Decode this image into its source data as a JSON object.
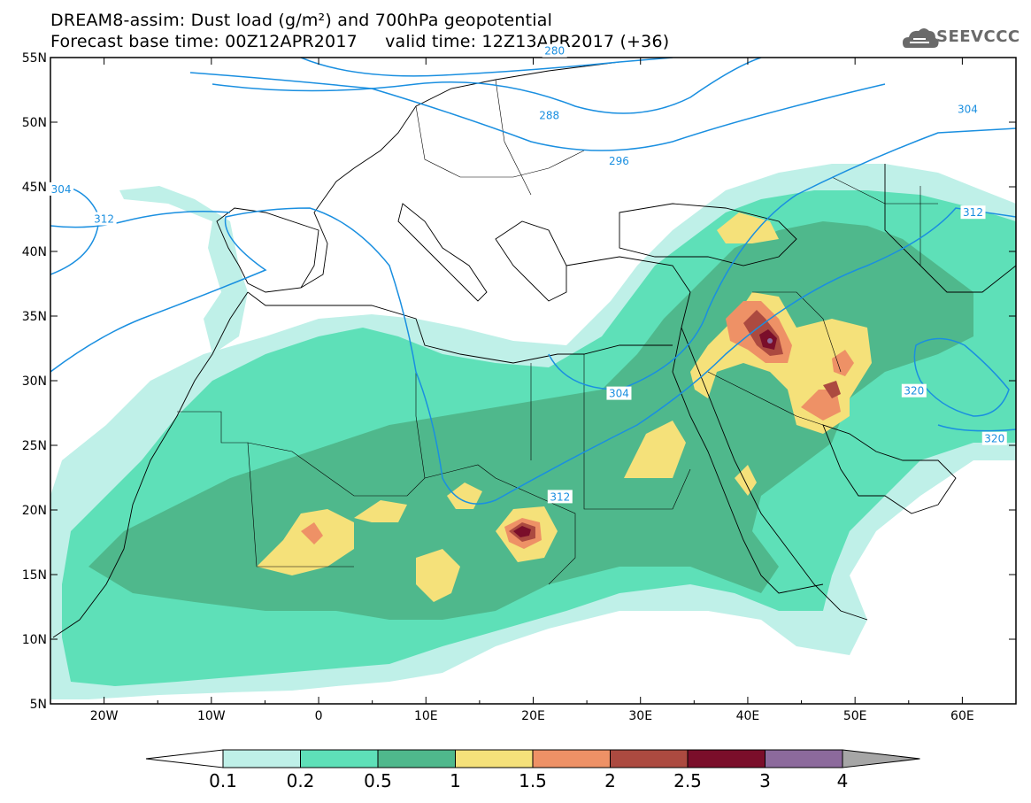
{
  "title_line1": "DREAM8-assim: Dust load (g/m²) and 700hPa geopotential",
  "title_line2": "Forecast base time: 00Z12APR2017     valid time: 12Z13APR2017 (+36)",
  "logo_text": "SEEVCCC",
  "logo_icon": "cloud-icon",
  "axes": {
    "lon_range": [
      -25,
      65
    ],
    "lat_range": [
      5,
      55
    ],
    "lon_ticks": [
      "20W",
      "10W",
      "0",
      "10E",
      "20E",
      "30E",
      "40E",
      "50E",
      "60E"
    ],
    "lat_ticks": [
      "55N",
      "50N",
      "45N",
      "40N",
      "35N",
      "30N",
      "25N",
      "20N",
      "15N",
      "10N",
      "5N"
    ]
  },
  "colorbar": {
    "labels": [
      "0.1",
      "0.2",
      "0.5",
      "1",
      "1.5",
      "2",
      "2.5",
      "3",
      "4"
    ],
    "colors": [
      "#bff0e8",
      "#5ee0b8",
      "#4fb88c",
      "#f5e17a",
      "#ee9166",
      "#ac4a40",
      "#7a0e2a",
      "#8c6a9c",
      "#a6a6a6"
    ]
  },
  "contours": [
    {
      "label": "280",
      "lon": 22,
      "lat": 55.5
    },
    {
      "label": "288",
      "lon": 21.5,
      "lat": 50.5
    },
    {
      "label": "296",
      "lon": 28,
      "lat": 47
    },
    {
      "label": "304",
      "lon": 60.5,
      "lat": 51
    },
    {
      "label": "304",
      "lon": -24,
      "lat": 44.8
    },
    {
      "label": "312",
      "lon": -20,
      "lat": 42.5
    },
    {
      "label": "312",
      "lon": 61,
      "lat": 43
    },
    {
      "label": "304",
      "lon": 28,
      "lat": 29
    },
    {
      "label": "312",
      "lon": 22.5,
      "lat": 21
    },
    {
      "label": "320",
      "lon": 55.5,
      "lat": 29.2
    },
    {
      "label": "320",
      "lon": 63,
      "lat": 25.5
    }
  ],
  "contour_color": "#1a8fe0"
}
